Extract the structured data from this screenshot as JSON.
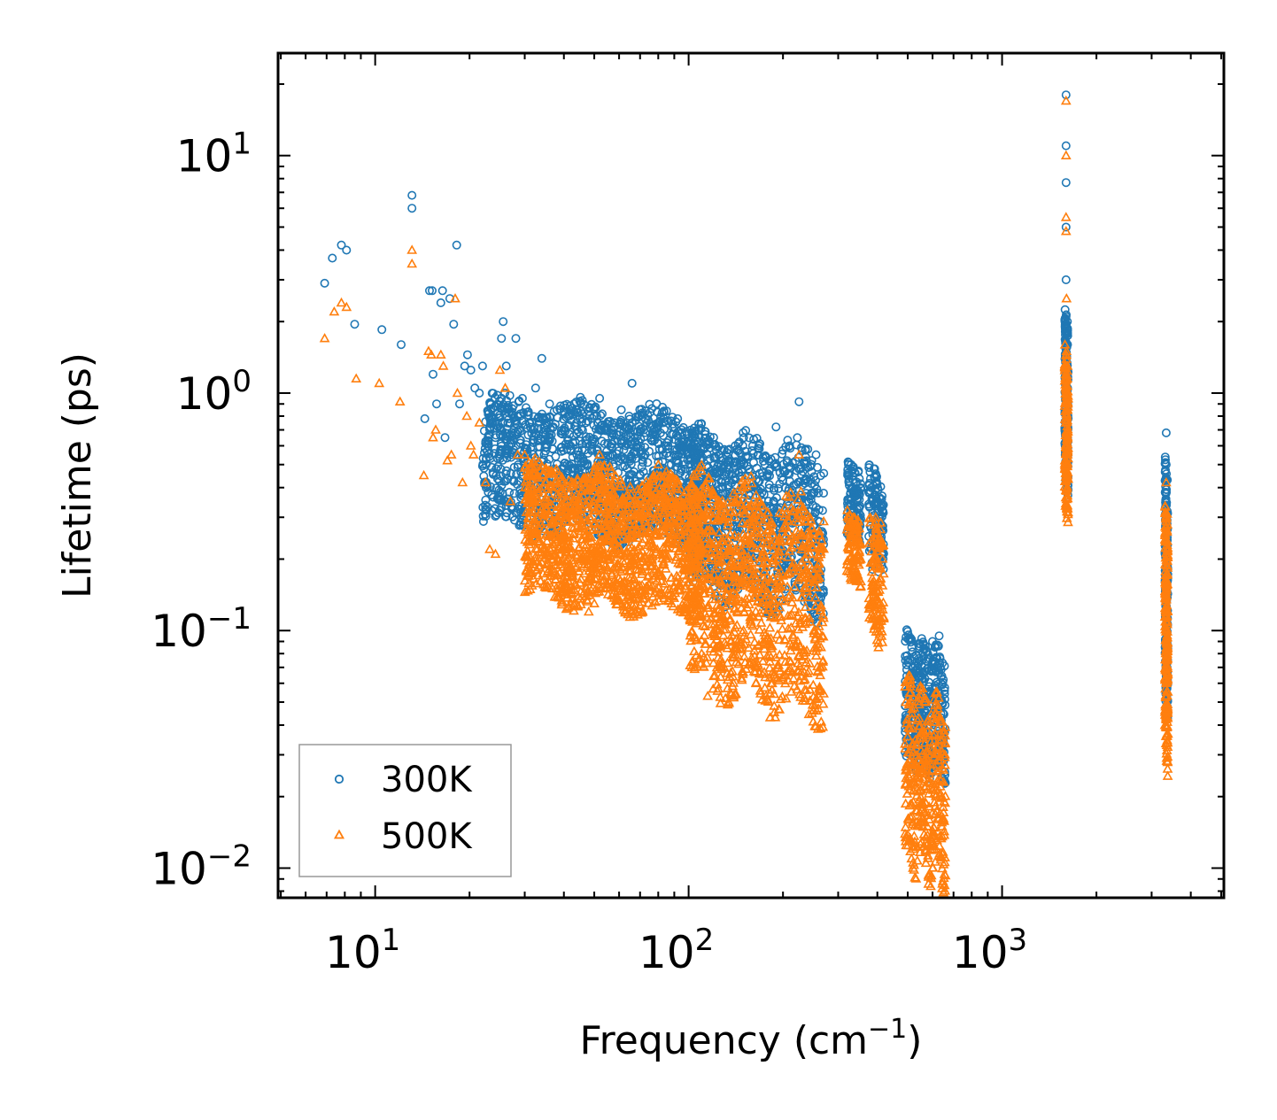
{
  "chart_data": {
    "type": "scatter",
    "xscale": "log",
    "yscale": "log",
    "xlim": [
      4.9,
      5100
    ],
    "ylim": [
      0.0075,
      27
    ],
    "xlabel": {
      "text": "Frequency (cm",
      "sup": "−1",
      "tail": ")"
    },
    "ylabel": "Lifetime (ps)",
    "x_ticks": [
      {
        "base": "10",
        "exp": "1",
        "value": 10
      },
      {
        "base": "10",
        "exp": "2",
        "value": 100
      },
      {
        "base": "10",
        "exp": "3",
        "value": 1000
      }
    ],
    "y_ticks": [
      {
        "base": "10",
        "exp": "−2",
        "value": 0.01
      },
      {
        "base": "10",
        "exp": "−1",
        "value": 0.1
      },
      {
        "base": "10",
        "exp": "0",
        "value": 1
      },
      {
        "base": "10",
        "exp": "1",
        "value": 10
      }
    ],
    "legend": {
      "position": "lower-left"
    },
    "series": [
      {
        "name": "300K",
        "marker": "circle",
        "color": "#1f77b4",
        "points": [
          [
            6.9,
            2.9
          ],
          [
            7.3,
            3.7
          ],
          [
            7.8,
            4.2
          ],
          [
            8.1,
            4.0
          ],
          [
            8.6,
            1.95
          ],
          [
            10.5,
            1.85
          ],
          [
            12.1,
            1.6
          ],
          [
            13.1,
            6.8
          ],
          [
            13.1,
            6.0
          ],
          [
            14.4,
            0.78
          ],
          [
            14.9,
            2.7
          ],
          [
            15.2,
            2.7
          ],
          [
            15.3,
            1.2
          ],
          [
            15.7,
            0.9
          ],
          [
            16.2,
            2.4
          ],
          [
            16.4,
            2.7
          ],
          [
            16.7,
            0.65
          ],
          [
            17.3,
            2.5
          ],
          [
            17.8,
            1.95
          ],
          [
            18.2,
            4.2
          ],
          [
            18.6,
            0.9
          ],
          [
            19.3,
            1.3
          ],
          [
            19.7,
            1.45
          ],
          [
            20.2,
            1.25
          ],
          [
            20.8,
            1.05
          ],
          [
            21.5,
            1.0
          ],
          [
            22.0,
            1.3
          ],
          [
            22.6,
            0.5
          ],
          [
            23.5,
            0.8
          ],
          [
            24.2,
            0.65
          ],
          [
            25.3,
            1.7
          ],
          [
            25.6,
            2.0
          ],
          [
            26.2,
            1.3
          ],
          [
            27.2,
            0.55
          ],
          [
            28.1,
            1.7
          ],
          [
            29.5,
            0.95
          ],
          [
            31.0,
            0.75
          ],
          [
            32.5,
            1.05
          ],
          [
            34.0,
            1.4
          ],
          [
            36.0,
            0.9
          ],
          [
            38.0,
            0.85
          ],
          [
            40.0,
            0.7
          ],
          [
            42.0,
            0.6
          ],
          [
            44.0,
            0.55
          ],
          [
            47.0,
            0.75
          ],
          [
            50.0,
            0.8
          ],
          [
            52.0,
            0.95
          ],
          [
            55.0,
            0.7
          ],
          [
            58.0,
            0.75
          ],
          [
            61.0,
            0.85
          ],
          [
            63.0,
            0.6
          ],
          [
            66.0,
            1.1
          ],
          [
            69.0,
            0.8
          ],
          [
            72.0,
            0.7
          ],
          [
            76.0,
            0.65
          ],
          [
            80.0,
            0.75
          ],
          [
            86.0,
            0.6
          ],
          [
            90.0,
            0.55
          ],
          [
            97.0,
            0.5
          ],
          [
            108.0,
            0.55
          ],
          [
            115.0,
            0.45
          ],
          [
            125.0,
            0.5
          ],
          [
            135.0,
            0.58
          ],
          [
            150.0,
            0.5
          ],
          [
            160.0,
            0.6
          ],
          [
            175.0,
            0.5
          ],
          [
            190.0,
            0.72
          ],
          [
            210.0,
            0.6
          ],
          [
            225.0,
            0.92
          ],
          [
            240.0,
            0.58
          ],
          [
            255.0,
            0.55
          ],
          [
            330.0,
            0.5
          ],
          [
            340.0,
            0.46
          ],
          [
            390.0,
            0.48
          ],
          [
            405.0,
            0.3
          ],
          [
            520.0,
            0.07
          ],
          [
            555.0,
            0.075
          ],
          [
            600.0,
            0.09
          ],
          [
            630.0,
            0.095
          ],
          [
            1600.0,
            18.0
          ],
          [
            1600.0,
            11.0
          ],
          [
            1600.0,
            7.7
          ],
          [
            1600.0,
            5.0
          ],
          [
            1600.0,
            3.0
          ],
          [
            1600.0,
            2.1
          ],
          [
            1610.0,
            1.6
          ],
          [
            1610.0,
            0.9
          ],
          [
            1605.0,
            0.55
          ],
          [
            3340.0,
            0.68
          ],
          [
            3340.0,
            0.5
          ],
          [
            3345.0,
            0.3
          ],
          [
            3340.0,
            0.15
          ],
          [
            3345.0,
            0.09
          ]
        ],
        "bands": [
          {
            "x": [
              22,
              110
            ],
            "y": [
              0.28,
              0.95
            ],
            "n": 1400
          },
          {
            "x": [
              100,
              270
            ],
            "y": [
              0.15,
              0.7
            ],
            "n": 900
          },
          {
            "x": [
              320,
              355
            ],
            "y": [
              0.25,
              0.5
            ],
            "n": 120
          },
          {
            "x": [
              375,
              420
            ],
            "y": [
              0.2,
              0.48
            ],
            "n": 120
          },
          {
            "x": [
              490,
              660
            ],
            "y": [
              0.028,
              0.095
            ],
            "n": 380
          },
          {
            "x": [
              1585,
              1625
            ],
            "y": [
              0.5,
              2.2
            ],
            "n": 160
          },
          {
            "x": [
              3310,
              3380
            ],
            "y": [
              0.06,
              0.5
            ],
            "n": 220
          }
        ]
      },
      {
        "name": "500K",
        "marker": "triangle",
        "color": "#ff7f0e",
        "points": [
          [
            6.9,
            1.7
          ],
          [
            7.4,
            2.2
          ],
          [
            7.8,
            2.4
          ],
          [
            8.1,
            2.3
          ],
          [
            8.7,
            1.15
          ],
          [
            10.3,
            1.1
          ],
          [
            12.0,
            0.92
          ],
          [
            13.1,
            4.0
          ],
          [
            13.1,
            3.5
          ],
          [
            14.3,
            0.45
          ],
          [
            14.8,
            1.5
          ],
          [
            15.1,
            1.45
          ],
          [
            15.3,
            0.65
          ],
          [
            15.6,
            0.7
          ],
          [
            16.2,
            1.45
          ],
          [
            16.5,
            1.3
          ],
          [
            17.0,
            0.52
          ],
          [
            17.5,
            0.55
          ],
          [
            18.0,
            2.5
          ],
          [
            18.3,
            1.0
          ],
          [
            19.0,
            0.42
          ],
          [
            19.6,
            0.8
          ],
          [
            20.2,
            0.6
          ],
          [
            20.6,
            0.55
          ],
          [
            21.5,
            0.75
          ],
          [
            22.5,
            0.42
          ],
          [
            23.2,
            0.22
          ],
          [
            24.2,
            0.21
          ],
          [
            25.0,
            1.25
          ],
          [
            26.0,
            1.05
          ],
          [
            27.0,
            0.35
          ],
          [
            28.5,
            0.55
          ],
          [
            30.0,
            0.55
          ],
          [
            31.5,
            0.45
          ],
          [
            33.0,
            0.35
          ],
          [
            35.0,
            0.22
          ],
          [
            37.0,
            0.2
          ],
          [
            39.0,
            0.19
          ],
          [
            41.0,
            0.17
          ],
          [
            43.0,
            0.15
          ],
          [
            46.0,
            0.2
          ],
          [
            48.0,
            0.12
          ],
          [
            50.0,
            0.13
          ],
          [
            52.0,
            0.55
          ],
          [
            56.0,
            0.2
          ],
          [
            60.0,
            0.15
          ],
          [
            64.0,
            0.14
          ],
          [
            67.0,
            0.35
          ],
          [
            70.0,
            0.3
          ],
          [
            75.0,
            0.35
          ],
          [
            80.0,
            0.5
          ],
          [
            85.0,
            0.4
          ],
          [
            90.0,
            0.3
          ],
          [
            110.0,
            0.08
          ],
          [
            115.0,
            0.053
          ],
          [
            125.0,
            0.1
          ],
          [
            140.0,
            0.3
          ],
          [
            160.0,
            0.3
          ],
          [
            175.0,
            0.15
          ],
          [
            200.0,
            0.17
          ],
          [
            225.0,
            0.55
          ],
          [
            240.0,
            0.25
          ],
          [
            335.0,
            0.3
          ],
          [
            345.0,
            0.17
          ],
          [
            395.0,
            0.3
          ],
          [
            400.0,
            0.11
          ],
          [
            520.0,
            0.01
          ],
          [
            580.0,
            0.011
          ],
          [
            620.0,
            0.055
          ],
          [
            1600.0,
            17.0
          ],
          [
            1600.0,
            10.0
          ],
          [
            1600.0,
            5.5
          ],
          [
            1600.0,
            4.8
          ],
          [
            1605.0,
            2.5
          ],
          [
            1605.0,
            1.5
          ],
          [
            1610.0,
            0.8
          ],
          [
            1605.0,
            0.4
          ],
          [
            3340.0,
            0.42
          ],
          [
            3340.0,
            0.3
          ],
          [
            3345.0,
            0.15
          ],
          [
            3340.0,
            0.06
          ],
          [
            3345.0,
            0.04
          ]
        ],
        "bands": [
          {
            "x": [
              30,
              110
            ],
            "y": [
              0.14,
              0.5
            ],
            "n": 1400
          },
          {
            "x": [
              100,
              270
            ],
            "y": [
              0.06,
              0.45
            ],
            "n": 1000
          },
          {
            "x": [
              320,
              355
            ],
            "y": [
              0.17,
              0.32
            ],
            "n": 110
          },
          {
            "x": [
              375,
              420
            ],
            "y": [
              0.1,
              0.3
            ],
            "n": 120
          },
          {
            "x": [
              490,
              660
            ],
            "y": [
              0.011,
              0.06
            ],
            "n": 380
          },
          {
            "x": [
              1585,
              1625
            ],
            "y": [
              0.37,
              1.5
            ],
            "n": 160
          },
          {
            "x": [
              3310,
              3380
            ],
            "y": [
              0.038,
              0.35
            ],
            "n": 220
          }
        ]
      }
    ]
  }
}
